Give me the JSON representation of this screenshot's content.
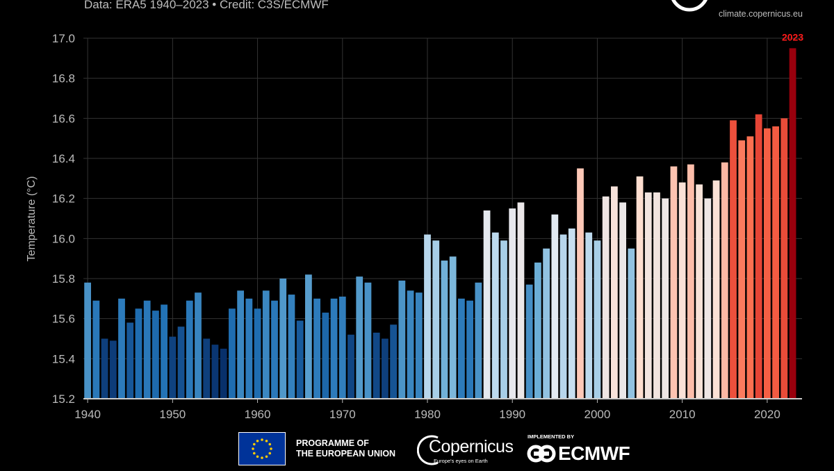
{
  "header": {
    "credit": "Data: ERA5 1940–2023 • Credit: C3S/ECMWF",
    "site": "climate.copernicus.eu"
  },
  "footer": {
    "eu_line1": "PROGRAMME OF",
    "eu_line2": "THE EUROPEAN UNION",
    "copernicus_name": "Copernicus",
    "copernicus_tagline": "Europe's eyes on Earth",
    "implemented_by": "IMPLEMENTED BY",
    "ecmwf": "ECMWF"
  },
  "chart_data": {
    "type": "bar",
    "title": "",
    "xlabel": "",
    "ylabel": "Temperature (°C)",
    "ylim": [
      15.2,
      17.0
    ],
    "yticks": [
      "15.2",
      "15.4",
      "15.6",
      "15.8",
      "16.0",
      "16.2",
      "16.4",
      "16.6",
      "16.8",
      "17.0"
    ],
    "xticks": [
      "1940",
      "1950",
      "1960",
      "1970",
      "1980",
      "1990",
      "2000",
      "2010",
      "2020"
    ],
    "grid": true,
    "highlight_label": "2023",
    "highlight_color": "#ff1a1a",
    "colormap": [
      "#08306b",
      "#2171b5",
      "#6baed6",
      "#deebf7",
      "#fee0d2",
      "#fb6a4a",
      "#cb181d",
      "#99000d"
    ],
    "background": "#000000",
    "years": [
      1940,
      1941,
      1942,
      1943,
      1944,
      1945,
      1946,
      1947,
      1948,
      1949,
      1950,
      1951,
      1952,
      1953,
      1954,
      1955,
      1956,
      1957,
      1958,
      1959,
      1960,
      1961,
      1962,
      1963,
      1964,
      1965,
      1966,
      1967,
      1968,
      1969,
      1970,
      1971,
      1972,
      1973,
      1974,
      1975,
      1976,
      1977,
      1978,
      1979,
      1980,
      1981,
      1982,
      1983,
      1984,
      1985,
      1986,
      1987,
      1988,
      1989,
      1990,
      1991,
      1992,
      1993,
      1994,
      1995,
      1996,
      1997,
      1998,
      1999,
      2000,
      2001,
      2002,
      2003,
      2004,
      2005,
      2006,
      2007,
      2008,
      2009,
      2010,
      2011,
      2012,
      2013,
      2014,
      2015,
      2016,
      2017,
      2018,
      2019,
      2020,
      2021,
      2022,
      2023
    ],
    "values": [
      15.78,
      15.69,
      15.5,
      15.49,
      15.7,
      15.58,
      15.65,
      15.69,
      15.64,
      15.67,
      15.51,
      15.56,
      15.69,
      15.73,
      15.5,
      15.47,
      15.45,
      15.65,
      15.74,
      15.7,
      15.65,
      15.74,
      15.69,
      15.8,
      15.72,
      15.59,
      15.82,
      15.7,
      15.63,
      15.7,
      15.71,
      15.52,
      15.81,
      15.78,
      15.53,
      15.5,
      15.57,
      15.79,
      15.74,
      15.73,
      16.02,
      15.99,
      15.89,
      15.91,
      15.7,
      15.69,
      15.78,
      16.14,
      16.03,
      15.99,
      16.15,
      16.18,
      15.77,
      15.88,
      15.95,
      16.12,
      16.02,
      16.05,
      16.35,
      16.03,
      15.99,
      16.21,
      16.26,
      16.18,
      15.95,
      16.31,
      16.23,
      16.23,
      16.2,
      16.36,
      16.28,
      16.37,
      16.27,
      16.2,
      16.29,
      16.38,
      16.59,
      16.49,
      16.51,
      16.62,
      16.55,
      16.56,
      16.6,
      16.95
    ]
  }
}
